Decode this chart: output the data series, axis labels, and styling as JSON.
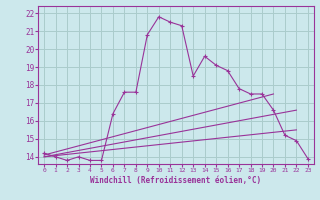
{
  "xlabel": "Windchill (Refroidissement éolien,°C)",
  "background_color": "#cce8ec",
  "grid_color": "#aacccc",
  "line_color": "#993399",
  "xlim": [
    -0.5,
    23.5
  ],
  "ylim": [
    13.6,
    22.4
  ],
  "yticks": [
    14,
    15,
    16,
    17,
    18,
    19,
    20,
    21,
    22
  ],
  "xticks": [
    0,
    1,
    2,
    3,
    4,
    5,
    6,
    7,
    8,
    9,
    10,
    11,
    12,
    13,
    14,
    15,
    16,
    17,
    18,
    19,
    20,
    21,
    22,
    23
  ],
  "series1_x": [
    0,
    1,
    2,
    3,
    4,
    5,
    6,
    7,
    8,
    9,
    10,
    11,
    12,
    13,
    14,
    15,
    16,
    17,
    18,
    19,
    20,
    21,
    22,
    23
  ],
  "series1_y": [
    14.2,
    14.0,
    13.8,
    14.0,
    13.8,
    13.8,
    16.4,
    17.6,
    17.6,
    20.8,
    21.8,
    21.5,
    21.3,
    18.5,
    19.6,
    19.1,
    18.8,
    17.8,
    17.5,
    17.5,
    16.6,
    15.2,
    14.9,
    13.9
  ],
  "series2_x": [
    0,
    20
  ],
  "series2_y": [
    14.1,
    17.5
  ],
  "series3_x": [
    0,
    22
  ],
  "series3_y": [
    14.0,
    16.6
  ],
  "series4_x": [
    0,
    22
  ],
  "series4_y": [
    14.0,
    15.5
  ]
}
